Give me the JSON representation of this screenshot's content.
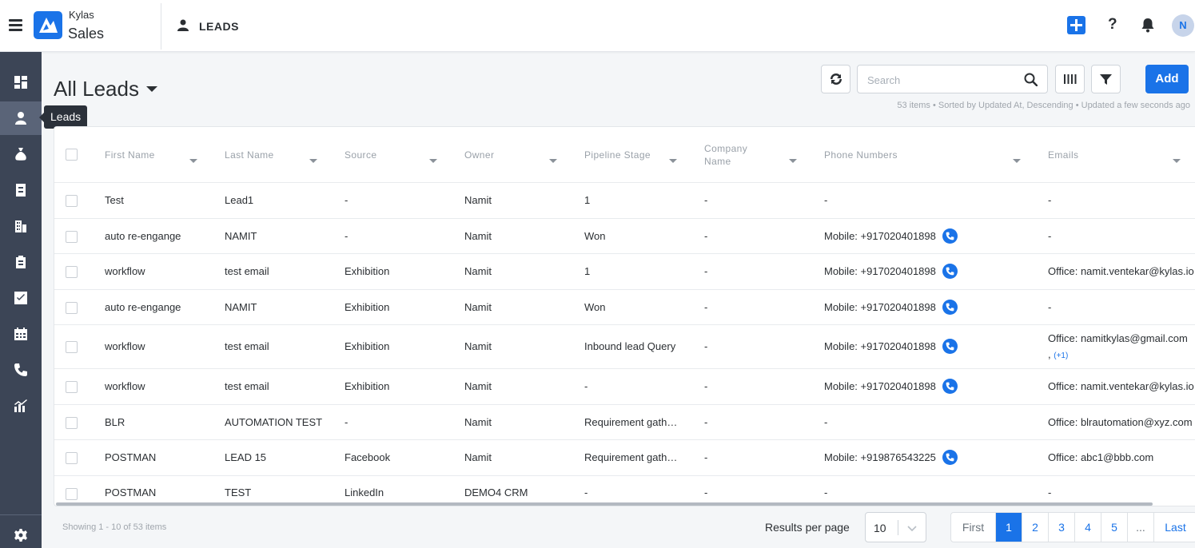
{
  "app": {
    "brand_top": "Kylas",
    "brand_bottom": "Sales",
    "module_title": "LEADS",
    "avatar_initial": "N",
    "help_glyph": "?"
  },
  "colors": {
    "primary": "#1a73e8",
    "sidebar": "#3c4556",
    "sidebar_active": "#5a6478"
  },
  "sidebar": {
    "items": [
      {
        "name": "dashboard",
        "icon": "dashboard-icon"
      },
      {
        "name": "leads",
        "icon": "user-icon",
        "active": true
      },
      {
        "name": "deals",
        "icon": "money-bag-icon"
      },
      {
        "name": "contacts",
        "icon": "contact-card-icon"
      },
      {
        "name": "companies",
        "icon": "building-icon"
      },
      {
        "name": "products",
        "icon": "clipboard-icon"
      },
      {
        "name": "tasks",
        "icon": "checkbox-icon"
      },
      {
        "name": "calendar",
        "icon": "calendar-icon"
      },
      {
        "name": "calls",
        "icon": "phone-icon"
      },
      {
        "name": "reports",
        "icon": "chart-icon"
      }
    ],
    "settings_icon": "gear-icon",
    "tooltip": "Leads"
  },
  "view": {
    "title": "All Leads"
  },
  "toolbar": {
    "search_placeholder": "Search",
    "add_label": "Add",
    "meta": "53 items • Sorted by Updated At, Descending • Updated a few seconds ago"
  },
  "table": {
    "columns": [
      "First Name",
      "Last Name",
      "Source",
      "Owner",
      "Pipeline Stage",
      "Company Name",
      "Phone Numbers",
      "Emails"
    ],
    "rows": [
      {
        "first": "Test",
        "last": "Lead1",
        "source": "-",
        "owner": "Namit",
        "stage": "1",
        "company": "-",
        "phone": "-",
        "email": "-"
      },
      {
        "first": "auto re-engange",
        "last": "NAMIT",
        "source": "-",
        "owner": "Namit",
        "stage": "Won",
        "company": "-",
        "phone": "Mobile: +917020401898",
        "email": "-"
      },
      {
        "first": "workflow",
        "last": "test email",
        "source": "Exhibition",
        "owner": "Namit",
        "stage": "1",
        "company": "-",
        "phone": "Mobile: +917020401898",
        "email": "Office: namit.ventekar@kylas.io"
      },
      {
        "first": "auto re-engange",
        "last": "NAMIT",
        "source": "Exhibition",
        "owner": "Namit",
        "stage": "Won",
        "company": "-",
        "phone": "Mobile: +917020401898",
        "email": "-"
      },
      {
        "first": "workflow",
        "last": "test email",
        "source": "Exhibition",
        "owner": "Namit",
        "stage": "Inbound lead Query",
        "company": "-",
        "phone": "Mobile: +917020401898",
        "email": "Office: namitkylas@gmail.com",
        "email_more": "(+1)"
      },
      {
        "first": "workflow",
        "last": "test email",
        "source": "Exhibition",
        "owner": "Namit",
        "stage": "-",
        "company": "-",
        "phone": "Mobile: +917020401898",
        "email": "Office: namit.ventekar@kylas.io"
      },
      {
        "first": "BLR",
        "last": "AUTOMATION TEST",
        "source": "-",
        "owner": "Namit",
        "stage": "Requirement gathering",
        "company": "-",
        "phone": "-",
        "email": "Office: blrautomation@xyz.com"
      },
      {
        "first": "POSTMAN",
        "last": "LEAD 15",
        "source": "Facebook",
        "owner": "Namit",
        "stage": "Requirement gathering",
        "company": "-",
        "phone": "Mobile: +919876543225",
        "email": "Office: abc1@bbb.com"
      },
      {
        "first": "POSTMAN",
        "last": "TEST",
        "source": "LinkedIn",
        "owner": "DEMO4 CRM",
        "stage": "-",
        "company": "-",
        "phone": "-",
        "email": "-"
      }
    ]
  },
  "footer": {
    "showing": "Showing 1 - 10 of 53 items",
    "rpp_label": "Results per page",
    "rpp_value": "10",
    "pager": {
      "first": "First",
      "pages": [
        "1",
        "2",
        "3",
        "4",
        "5"
      ],
      "current": "1",
      "ellipsis": "...",
      "last": "Last"
    }
  }
}
